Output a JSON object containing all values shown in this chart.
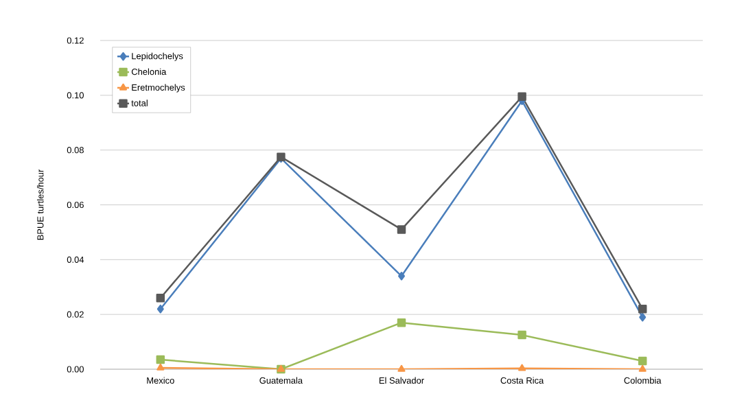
{
  "chart_data": {
    "type": "line",
    "ylabel": "BPUE  turtles/hour",
    "categories": [
      "Mexico",
      "Guatemala",
      "El Salvador",
      "Costa Rica",
      "Colombia"
    ],
    "series": [
      {
        "name": "Lepidochelys",
        "color": "#4a7ebb",
        "marker": "diamond",
        "values": [
          0.022,
          0.077,
          0.034,
          0.098,
          0.019
        ]
      },
      {
        "name": "Chelonia",
        "color": "#9bbb59",
        "marker": "square",
        "values": [
          0.0035,
          0.0,
          0.017,
          0.0125,
          0.003
        ]
      },
      {
        "name": "Eretmochelys",
        "color": "#f79646",
        "marker": "triangle",
        "values": [
          0.0005,
          0.0,
          0.0,
          0.0003,
          0.0
        ]
      },
      {
        "name": "total",
        "color": "#595959",
        "marker": "square",
        "values": [
          0.026,
          0.0775,
          0.051,
          0.0995,
          0.022
        ]
      }
    ],
    "ylim": [
      0,
      0.12
    ],
    "yticks": [
      {
        "value": 0,
        "label": "0.00"
      },
      {
        "value": 0.02,
        "label": "0.02"
      },
      {
        "value": 0.04,
        "label": "0.04"
      },
      {
        "value": 0.06,
        "label": "0.06"
      },
      {
        "value": 0.08,
        "label": "0.08"
      },
      {
        "value": 0.1,
        "label": "0.10"
      },
      {
        "value": 0.12,
        "label": "0.12"
      }
    ],
    "grid": "y",
    "legend": "top left",
    "line_style": "solid"
  }
}
